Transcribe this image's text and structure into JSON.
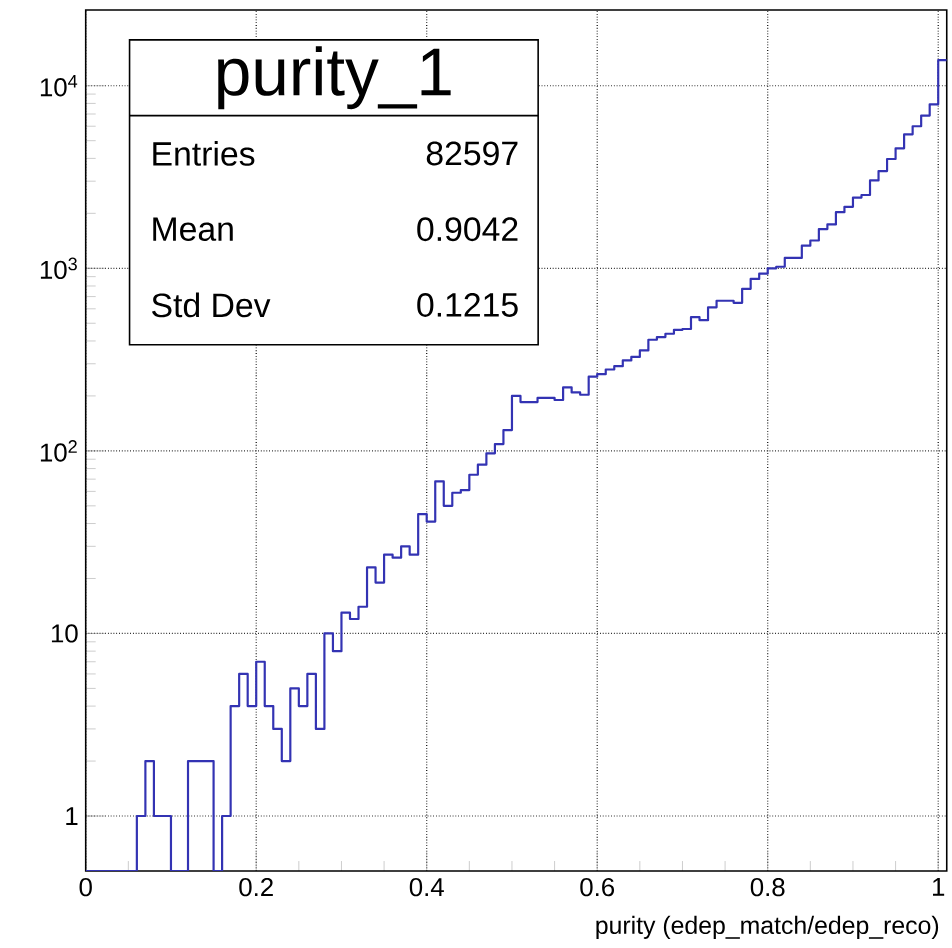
{
  "chart_data": {
    "type": "histogram",
    "title": "purity_1",
    "xlabel": "purity (edep_match/edep_reco)",
    "annotations": [
      "Entries",
      "82597",
      "Mean",
      "0.9042",
      "Std Dev",
      "0.1215"
    ],
    "bins": [
      0,
      0.01,
      0.02,
      0.03,
      0.04,
      0.05,
      0.06,
      0.07,
      0.08,
      0.09,
      0.1,
      0.11,
      0.12,
      0.13,
      0.14,
      0.15,
      0.16,
      0.17,
      0.18,
      0.19,
      0.2,
      0.21,
      0.22,
      0.23,
      0.24,
      0.25,
      0.26,
      0.27,
      0.28,
      0.29,
      0.3,
      0.31,
      0.32,
      0.33,
      0.34,
      0.35,
      0.36,
      0.37,
      0.38,
      0.39,
      0.4,
      0.41,
      0.42,
      0.43,
      0.44,
      0.45,
      0.46,
      0.47,
      0.48,
      0.49,
      0.5,
      0.51,
      0.52,
      0.53,
      0.54,
      0.55,
      0.56,
      0.57,
      0.58,
      0.59,
      0.6,
      0.61,
      0.62,
      0.63,
      0.64,
      0.65,
      0.66,
      0.67,
      0.68,
      0.69,
      0.7,
      0.71,
      0.72,
      0.73,
      0.74,
      0.75,
      0.76,
      0.77,
      0.78,
      0.79,
      0.8,
      0.81,
      0.82,
      0.83,
      0.84,
      0.85,
      0.86,
      0.87,
      0.88,
      0.89,
      0.9,
      0.91,
      0.92,
      0.93,
      0.94,
      0.95,
      0.96,
      0.97,
      0.98,
      0.99,
      1.0,
      1.01
    ],
    "values": [
      null,
      null,
      null,
      null,
      null,
      null,
      1,
      2,
      1,
      1,
      null,
      null,
      2,
      2,
      2,
      null,
      1,
      4,
      6,
      4,
      7,
      4,
      3,
      2,
      5,
      4,
      6,
      3,
      10,
      8,
      13,
      12,
      14,
      23,
      19,
      27,
      26,
      30,
      27,
      45,
      41,
      68,
      50,
      59,
      61,
      74,
      84,
      97,
      109,
      130,
      200,
      185,
      185,
      195,
      195,
      190,
      223,
      209,
      203,
      255,
      263,
      279,
      291,
      313,
      327,
      355,
      406,
      420,
      438,
      460,
      465,
      540,
      520,
      611,
      664,
      664,
      647,
      772,
      875,
      935,
      1000,
      1020,
      1140,
      1140,
      1330,
      1420,
      1640,
      1740,
      2030,
      2170,
      2440,
      2520,
      3030,
      3410,
      3970,
      4540,
      5420,
      6000,
      6860,
      7910,
      13800
    ],
    "color": "#3333b3",
    "xlim": [
      0,
      1.01
    ],
    "ylim": [
      0.5,
      26000
    ],
    "xticks": [
      0,
      0.2,
      0.4,
      0.6,
      0.8,
      1
    ],
    "yticks": [
      {
        "value": 1,
        "label": "1"
      },
      {
        "value": 10,
        "label": "10"
      },
      {
        "value": 100,
        "label": "10$^{2}$"
      },
      {
        "value": 1000,
        "label": "10$^{3}$"
      },
      {
        "value": 10000,
        "label": "10$^{4}$"
      }
    ],
    "log": true,
    "grid": true
  }
}
